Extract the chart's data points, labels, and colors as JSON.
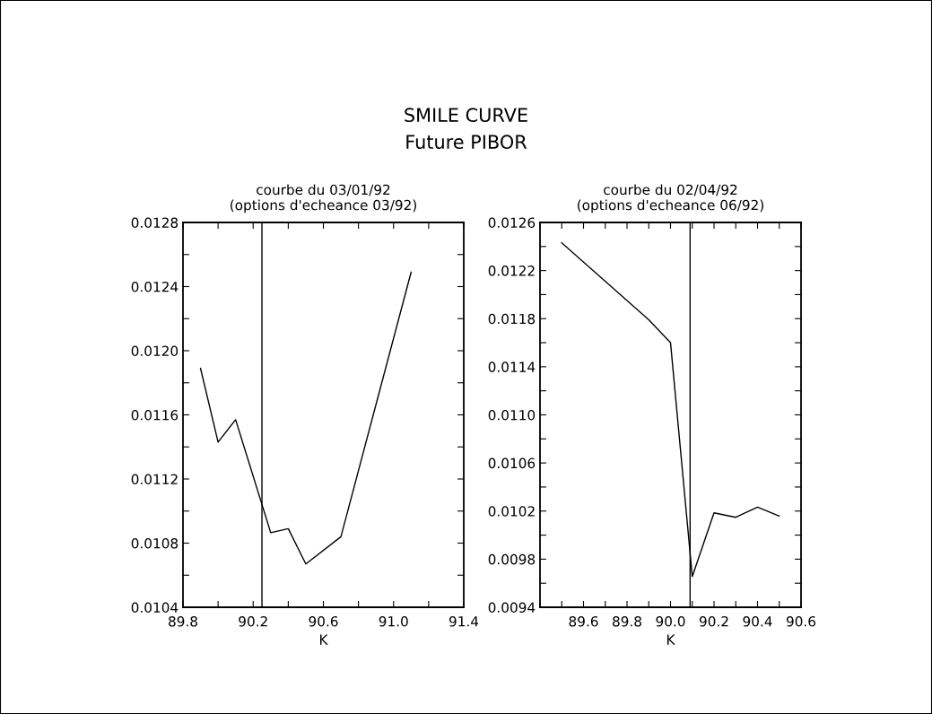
{
  "chart_data": [
    {
      "type": "line",
      "title": "courbe du 03/01/92",
      "subtitle": "(options d'echeance 03/92)",
      "xlabel": "K",
      "annotations": [
        "SMILE CURVE",
        "Future PIBOR"
      ],
      "x": [
        89.9,
        90.0,
        90.1,
        90.3,
        90.4,
        90.5,
        90.7,
        91.1
      ],
      "series": [
        {
          "color": "#000000",
          "values": [
            0.01189,
            0.01143,
            0.01157,
            0.010865,
            0.01089,
            0.01067,
            0.01084,
            0.01249
          ]
        }
      ],
      "xlim": [
        89.8,
        91.4
      ],
      "xticks": [
        89.8,
        {
          "value": 90.0,
          "label": null
        },
        90.2,
        {
          "value": 90.4,
          "label": null
        },
        90.6,
        {
          "value": 90.8,
          "label": null
        },
        {
          "value": 91.0,
          "label": "91.0"
        },
        {
          "value": 91.2,
          "label": null
        },
        91.4
      ],
      "ylim": [
        0.0104,
        0.0128
      ],
      "yticks": [
        0.0104,
        {
          "value": 0.0106,
          "label": null
        },
        0.0108,
        {
          "value": 0.011,
          "label": null
        },
        0.0112,
        {
          "value": 0.0114,
          "label": null
        },
        0.0116,
        {
          "value": 0.0118,
          "label": null
        },
        {
          "value": 0.012,
          "label": "0.0120"
        },
        {
          "value": 0.0122,
          "label": null
        },
        0.0124,
        {
          "value": 0.0126,
          "label": null
        },
        0.0128
      ],
      "ref_lines": [
        {
          "axis": "x",
          "value": 90.25,
          "color": "#000000"
        }
      ],
      "grid": false,
      "legend": false
    },
    {
      "type": "line",
      "title": "courbe du 02/04/92",
      "subtitle": "(options d'echeance 06/92)",
      "xlabel": "K",
      "x": [
        89.5,
        89.9,
        90.0,
        90.1,
        90.2,
        90.3,
        90.4,
        90.5
      ],
      "series": [
        {
          "color": "#000000",
          "values": [
            0.01243,
            0.01179,
            0.0116,
            0.009656,
            0.010185,
            0.010148,
            0.010232,
            0.010158
          ]
        }
      ],
      "xlim": [
        89.4,
        90.6
      ],
      "xticks": [
        {
          "value": 89.4,
          "label": null
        },
        {
          "value": 89.5,
          "label": null
        },
        89.6,
        {
          "value": 89.7,
          "label": null
        },
        89.8,
        {
          "value": 89.9,
          "label": null
        },
        {
          "value": 90.0,
          "label": "90.0"
        },
        {
          "value": 90.1,
          "label": null
        },
        90.2,
        {
          "value": 90.3,
          "label": null
        },
        90.4,
        {
          "value": 90.5,
          "label": null
        },
        90.6
      ],
      "ylim": [
        0.0094,
        0.0126
      ],
      "yticks": [
        0.0094,
        {
          "value": 0.0096,
          "label": null
        },
        0.0098,
        {
          "value": 0.01,
          "label": null
        },
        0.0102,
        {
          "value": 0.0104,
          "label": null
        },
        0.0106,
        {
          "value": 0.0108,
          "label": null
        },
        {
          "value": 0.011,
          "label": "0.0110"
        },
        {
          "value": 0.0112,
          "label": null
        },
        0.0114,
        {
          "value": 0.0116,
          "label": null
        },
        0.0118,
        {
          "value": 0.012,
          "label": null
        },
        0.0122,
        {
          "value": 0.0124,
          "label": null
        },
        0.0126
      ],
      "ref_lines": [
        {
          "axis": "x",
          "value": 90.09,
          "color": "#000000"
        }
      ],
      "grid": false,
      "legend": false
    }
  ]
}
